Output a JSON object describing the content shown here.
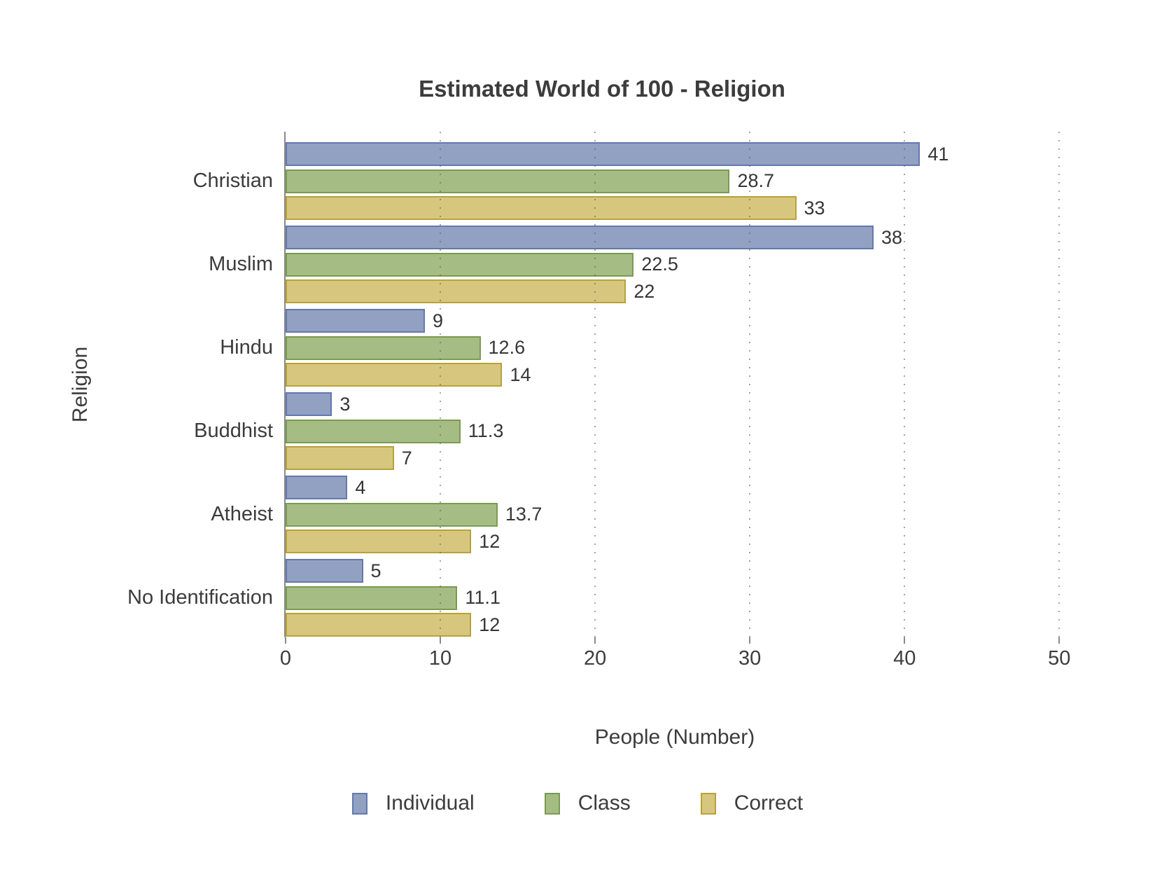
{
  "chart_data": {
    "type": "bar",
    "orientation": "horizontal",
    "title": "Estimated World of 100 - Religion",
    "xlabel": "People (Number)",
    "ylabel": "Religion",
    "categories": [
      "Christian",
      "Muslim",
      "Hindu",
      "Buddhist",
      "Atheist",
      "No Identification"
    ],
    "series": [
      {
        "name": "Individual",
        "color": "#92A1C2",
        "border_color": "#6378AF",
        "values": [
          41,
          38,
          9,
          3,
          4,
          5
        ]
      },
      {
        "name": "Class",
        "color": "#A5BD84",
        "border_color": "#7B9B51",
        "values": [
          28.7,
          22.5,
          12.6,
          11.3,
          13.7,
          11.1
        ]
      },
      {
        "name": "Correct",
        "color": "#D7C77E",
        "border_color": "#B9A237",
        "values": [
          33,
          22,
          14,
          7,
          12,
          12
        ]
      }
    ],
    "data_labels": {
      "Individual": [
        "41",
        "38",
        "9",
        "3",
        "4",
        "5"
      ],
      "Class": [
        "28.7",
        "22.5",
        "12.6",
        "11.3",
        "13.7",
        "11.1"
      ],
      "Correct": [
        "33",
        "22",
        "14",
        "7",
        "12",
        "12"
      ]
    },
    "xticks": [
      0,
      10,
      20,
      30,
      40,
      50
    ],
    "xlim": [
      0,
      52.7
    ],
    "grid": "dotted vertical gridlines at x ticks > 0, drawn over bars",
    "legend_position": "bottom center",
    "legend_entries": [
      "Individual",
      "Class",
      "Correct"
    ],
    "axis_color": "#8a8a8a",
    "text_color": "#3c3c3c"
  }
}
